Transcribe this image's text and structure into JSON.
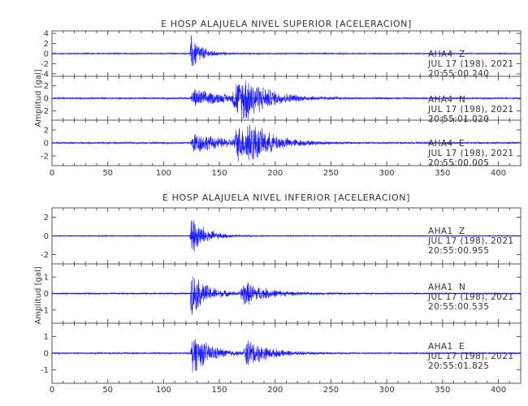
{
  "chart_data": [
    {
      "type": "line",
      "title": "E HOSP ALAJUELA NIVEL SUPERIOR [ACELERACION]",
      "ylabel": "Amplitud [gal]",
      "xlim": [
        0,
        420
      ],
      "x_ticks": [
        0,
        50,
        100,
        150,
        200,
        250,
        300,
        350,
        400
      ],
      "panels": [
        {
          "station": "AHA4",
          "component": "Z",
          "date": "JUL 17 (198), 2021",
          "time": "20:55:00.240",
          "ylim": [
            -4.5,
            4.5
          ],
          "y_ticks": [
            4,
            2,
            0,
            -2,
            -4
          ],
          "envelope": {
            "noise": 0.15,
            "events": [
              {
                "t": 125,
                "peak": 4.2,
                "rise": 1.5,
                "decay": 9
              }
            ]
          }
        },
        {
          "station": "AHA4",
          "component": "N",
          "date": "JUL 17 (198), 2021",
          "time": "20:55:01.020",
          "ylim": [
            -3.5,
            3.5
          ],
          "y_ticks": [
            2,
            0,
            -2
          ],
          "envelope": {
            "noise": 0.15,
            "events": [
              {
                "t": 127,
                "peak": 1.6,
                "rise": 3,
                "decay": 30
              },
              {
                "t": 165,
                "peak": 2.8,
                "rise": 4,
                "decay": 18
              },
              {
                "t": 172,
                "peak": 2.3,
                "rise": 3,
                "decay": 22
              }
            ]
          }
        },
        {
          "station": "AHA4",
          "component": "E",
          "date": "JUL 17 (198), 2021",
          "time": "20:55:00.005",
          "ylim": [
            -3.5,
            3.5
          ],
          "y_ticks": [
            2,
            0,
            -2
          ],
          "envelope": {
            "noise": 0.15,
            "events": [
              {
                "t": 127,
                "peak": 1.8,
                "rise": 3,
                "decay": 28
              },
              {
                "t": 166,
                "peak": 2.6,
                "rise": 4,
                "decay": 20
              },
              {
                "t": 175,
                "peak": 2.2,
                "rise": 3,
                "decay": 20
              }
            ]
          }
        }
      ]
    },
    {
      "type": "line",
      "title": "E HOSP ALAJUELA NIVEL INFERIOR [ACELERACION]",
      "ylabel": "Amplitud [gal]",
      "xlim": [
        0,
        420
      ],
      "x_ticks": [
        0,
        50,
        100,
        150,
        200,
        250,
        300,
        350,
        400
      ],
      "panels": [
        {
          "station": "AHA1",
          "component": "Z",
          "date": "JUL 17 (198), 2021",
          "time": "20:55:00.955",
          "ylim": [
            -3,
            3
          ],
          "y_ticks": [
            2,
            0,
            -2
          ],
          "envelope": {
            "noise": 0.06,
            "events": [
              {
                "t": 125,
                "peak": 2.6,
                "rise": 1.5,
                "decay": 12
              }
            ]
          }
        },
        {
          "station": "AHA1",
          "component": "N",
          "date": "JUL 17 (198), 2021",
          "time": "20:55:00.535",
          "ylim": [
            -1.8,
            1.8
          ],
          "y_ticks": [
            1,
            0,
            -1
          ],
          "envelope": {
            "noise": 0.05,
            "events": [
              {
                "t": 125,
                "peak": 1.5,
                "rise": 1.5,
                "decay": 14
              },
              {
                "t": 172,
                "peak": 0.8,
                "rise": 4,
                "decay": 20
              }
            ]
          }
        },
        {
          "station": "AHA1",
          "component": "E",
          "date": "JUL 17 (198), 2021",
          "time": "20:55:01.825",
          "ylim": [
            -1.8,
            1.8
          ],
          "y_ticks": [
            1,
            0,
            -1
          ],
          "envelope": {
            "noise": 0.05,
            "events": [
              {
                "t": 126,
                "peak": 1.4,
                "rise": 2,
                "decay": 16
              },
              {
                "t": 175,
                "peak": 0.9,
                "rise": 4,
                "decay": 18
              }
            ]
          }
        }
      ]
    }
  ]
}
